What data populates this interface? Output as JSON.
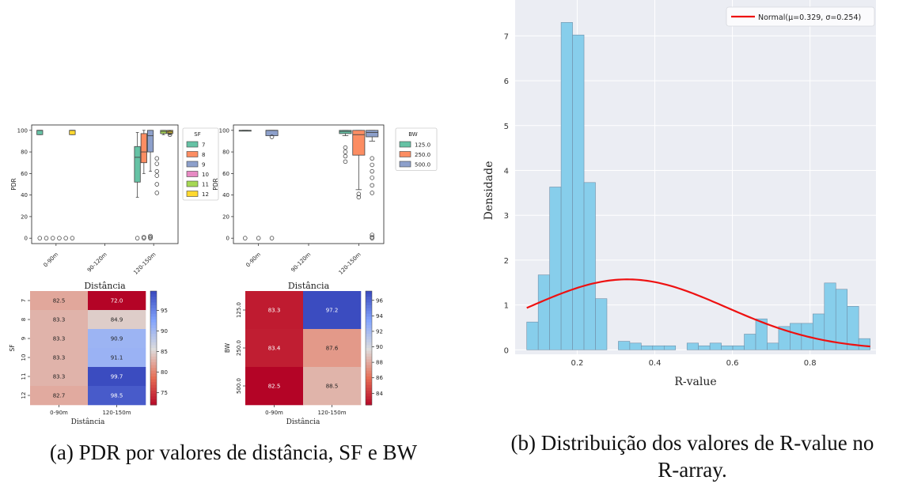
{
  "captions": {
    "left": "(a) PDR por valores de distância, SF e BW",
    "right_line1": "(b) Distribuição dos valores de R-value no",
    "right_line2": "R-array."
  },
  "chart_data": [
    {
      "type": "box",
      "id": "pdr_sf",
      "xlabel": "Distância",
      "ylabel": "PDR",
      "categories": [
        "0-90m",
        "90-120m",
        "120-150m"
      ],
      "yticks": [
        0,
        20,
        40,
        60,
        80,
        100
      ],
      "ylim": [
        -5,
        105
      ],
      "legend": {
        "title": "SF",
        "position": "outside-right",
        "entries": [
          "7",
          "8",
          "9",
          "10",
          "11",
          "12"
        ]
      },
      "colors": [
        "#66c2a5",
        "#fc8d62",
        "#8da0cb",
        "#e78ac3",
        "#a6d854",
        "#ffd92f"
      ],
      "boxes": [
        {
          "category": "0-90m",
          "series": "7",
          "q1": 96,
          "median": 100,
          "q3": 100,
          "low": 96,
          "high": 100
        },
        {
          "category": "0-90m",
          "series": "12",
          "q1": 96,
          "median": 100,
          "q3": 100,
          "low": 96,
          "high": 100
        },
        {
          "category": "120-150m",
          "series": "7",
          "q1": 52,
          "median": 75,
          "q3": 85,
          "low": 38,
          "high": 98
        },
        {
          "category": "120-150m",
          "series": "8",
          "q1": 70,
          "median": 80,
          "q3": 97,
          "low": 60,
          "high": 100
        },
        {
          "category": "120-150m",
          "series": "9",
          "q1": 80,
          "median": 95,
          "q3": 100,
          "low": 62,
          "high": 100
        },
        {
          "category": "120-150m",
          "series": "11",
          "q1": 97,
          "median": 99,
          "q3": 100,
          "low": 96,
          "high": 100
        },
        {
          "category": "120-150m",
          "series": "12",
          "q1": 97,
          "median": 99,
          "q3": 100,
          "low": 96,
          "high": 100
        }
      ],
      "outliers": [
        {
          "category": "0-90m",
          "series": "7",
          "values": [
            0
          ]
        },
        {
          "category": "0-90m",
          "series": "8",
          "values": [
            0
          ]
        },
        {
          "category": "0-90m",
          "series": "9",
          "values": [
            0
          ]
        },
        {
          "category": "0-90m",
          "series": "10",
          "values": [
            0
          ]
        },
        {
          "category": "0-90m",
          "series": "11",
          "values": [
            0
          ]
        },
        {
          "category": "0-90m",
          "series": "12",
          "values": [
            0
          ]
        },
        {
          "category": "120-150m",
          "series": "7",
          "values": [
            0
          ]
        },
        {
          "category": "120-150m",
          "series": "8",
          "values": [
            0,
            1
          ]
        },
        {
          "category": "120-150m",
          "series": "9",
          "values": [
            0,
            1,
            2
          ]
        },
        {
          "category": "120-150m",
          "series": "10",
          "values": [
            74,
            69,
            62,
            58,
            50,
            42
          ]
        },
        {
          "category": "120-150m",
          "series": "12",
          "values": [
            98,
            96
          ]
        }
      ]
    },
    {
      "type": "box",
      "id": "pdr_bw",
      "xlabel": "Distância",
      "ylabel": "PDR",
      "categories": [
        "0-90m",
        "90-120m",
        "120-150m"
      ],
      "yticks": [
        0,
        20,
        40,
        60,
        80,
        100
      ],
      "ylim": [
        -5,
        105
      ],
      "legend": {
        "title": "BW",
        "position": "top-right",
        "entries": [
          "125.0",
          "250.0",
          "500.0"
        ]
      },
      "colors": [
        "#66c2a5",
        "#fc8d62",
        "#8da0cb"
      ],
      "boxes": [
        {
          "category": "0-90m",
          "series": "125.0",
          "q1": 100,
          "median": 100,
          "q3": 100,
          "low": 100,
          "high": 100
        },
        {
          "category": "0-90m",
          "series": "500.0",
          "q1": 95,
          "median": 100,
          "q3": 100,
          "low": 95,
          "high": 100
        },
        {
          "category": "120-150m",
          "series": "125.0",
          "q1": 97,
          "median": 99,
          "q3": 100,
          "low": 95,
          "high": 100
        },
        {
          "category": "120-150m",
          "series": "250.0",
          "q1": 77,
          "median": 96,
          "q3": 100,
          "low": 45,
          "high": 100
        },
        {
          "category": "120-150m",
          "series": "500.0",
          "q1": 94,
          "median": 98,
          "q3": 100,
          "low": 90,
          "high": 100
        }
      ],
      "outliers": [
        {
          "category": "0-90m",
          "series": "125.0",
          "values": [
            0
          ]
        },
        {
          "category": "0-90m",
          "series": "250.0",
          "values": [
            0
          ]
        },
        {
          "category": "0-90m",
          "series": "500.0",
          "values": [
            0,
            94
          ]
        },
        {
          "category": "120-150m",
          "series": "125.0",
          "values": [
            84,
            80,
            76,
            71
          ]
        },
        {
          "category": "120-150m",
          "series": "250.0",
          "values": [
            41,
            38
          ]
        },
        {
          "category": "120-150m",
          "series": "500.0",
          "values": [
            74,
            68,
            62,
            56,
            49,
            42,
            3,
            1,
            0
          ]
        }
      ]
    },
    {
      "type": "heatmap",
      "id": "heat_sf",
      "xlabel": "Distância",
      "ylabel": "SF",
      "x": [
        "0-90m",
        "120-150m"
      ],
      "y": [
        "7",
        "8",
        "9",
        "10",
        "11",
        "12"
      ],
      "values": [
        [
          82.5,
          72.0
        ],
        [
          83.3,
          84.9
        ],
        [
          83.3,
          90.9
        ],
        [
          83.3,
          91.1
        ],
        [
          83.3,
          99.7
        ],
        [
          82.7,
          98.5
        ]
      ],
      "labels": [
        [
          "82.5",
          "72.0"
        ],
        [
          "83.3",
          "84.9"
        ],
        [
          "83.3",
          "90.9"
        ],
        [
          "83.3",
          "91.1"
        ],
        [
          "83.3",
          "99.7"
        ],
        [
          "82.7",
          "98.5"
        ]
      ],
      "colorbar": {
        "min": 72.0,
        "max": 99.7,
        "ticks": [
          "75",
          "80",
          "85",
          "90",
          "95"
        ],
        "tick_values": [
          75,
          80,
          85,
          90,
          95
        ]
      },
      "colormap": "coolwarm_r"
    },
    {
      "type": "heatmap",
      "id": "heat_bw",
      "xlabel": "Distância",
      "ylabel": "BW",
      "x": [
        "0-90m",
        "120-150m"
      ],
      "y": [
        "125.0",
        "250.0",
        "500.0"
      ],
      "values": [
        [
          83.3,
          97.2
        ],
        [
          83.4,
          87.6
        ],
        [
          82.5,
          88.5
        ]
      ],
      "labels": [
        [
          "83.3",
          "97.2"
        ],
        [
          "83.4",
          "87.6"
        ],
        [
          "82.5",
          "88.5"
        ]
      ],
      "colorbar": {
        "min": 82.5,
        "max": 97.2,
        "ticks": [
          "84",
          "86",
          "88",
          "90",
          "92",
          "94",
          "96"
        ],
        "tick_values": [
          84,
          86,
          88,
          90,
          92,
          94,
          96
        ]
      },
      "colormap": "coolwarm_r"
    },
    {
      "type": "histogram",
      "id": "rvalue_hist",
      "xlabel": "R-value",
      "ylabel": "Densidade",
      "xticks": [
        "0.2",
        "0.4",
        "0.6",
        "0.8"
      ],
      "xtick_values": [
        0.2,
        0.4,
        0.6,
        0.8
      ],
      "yticks": [
        "0",
        "1",
        "2",
        "3",
        "4",
        "5",
        "6",
        "7"
      ],
      "ytick_values": [
        0,
        1,
        2,
        3,
        4,
        5,
        6,
        7
      ],
      "xlim": [
        0.04,
        0.97
      ],
      "ylim": [
        -0.1,
        7.8
      ],
      "grid": true,
      "bar_color": "#87ceeb",
      "bins_start": 0.07,
      "bin_width": 0.0295,
      "densities": [
        0.62,
        1.67,
        3.63,
        7.3,
        7.02,
        3.73,
        1.14,
        0.0,
        0.19,
        0.15,
        0.09,
        0.09,
        0.09,
        0.0,
        0.15,
        0.09,
        0.15,
        0.09,
        0.09,
        0.35,
        0.69,
        0.15,
        0.52,
        0.59,
        0.59,
        0.8,
        1.49,
        1.35,
        0.97,
        0.25
      ],
      "fit": {
        "mu": 0.329,
        "sigma": 0.254,
        "color": "#ee1111",
        "label": "Normal(μ=0.329, σ=0.254)"
      },
      "legend": {
        "position": "top-right"
      }
    }
  ]
}
